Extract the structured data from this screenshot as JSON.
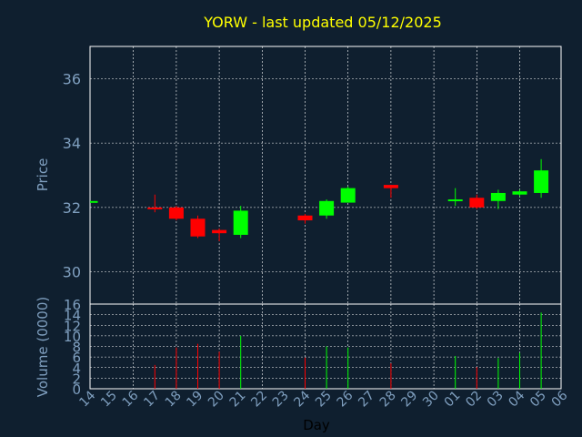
{
  "chart_data": {
    "type": "candlestick",
    "title": "YORW - last updated 05/12/2025",
    "price_ylabel": "Price",
    "volume_ylabel": "Volume (0000)",
    "xlabel": "Day",
    "price_ylim": [
      29,
      37
    ],
    "price_yticks": [
      30,
      32,
      34,
      36
    ],
    "volume_ylim": [
      0,
      16
    ],
    "volume_yticks": [
      0,
      2,
      4,
      6,
      8,
      10,
      12,
      14,
      16
    ],
    "x_tick_labels": [
      "14",
      "15",
      "16",
      "17",
      "18",
      "19",
      "20",
      "21",
      "22",
      "23",
      "24",
      "25",
      "26",
      "27",
      "28",
      "29",
      "30",
      "01",
      "02",
      "03",
      "04",
      "05",
      "06"
    ],
    "grid": true,
    "colors": {
      "up": "#00ff00",
      "down": "#ff0000",
      "grid": "#ffffff",
      "axis": "#7f9fbf",
      "title": "#ffff00",
      "background": "#0f1f2f"
    },
    "candles": [
      {
        "day": "14",
        "open": 32.15,
        "close": 32.2,
        "high": 32.2,
        "low": 32.15,
        "volume": 0
      },
      {
        "day": "17",
        "open": 32.0,
        "close": 31.95,
        "high": 32.4,
        "low": 31.85,
        "volume": 4.5
      },
      {
        "day": "18",
        "open": 32.0,
        "close": 31.65,
        "high": 32.05,
        "low": 31.6,
        "volume": 7.8
      },
      {
        "day": "19",
        "open": 31.65,
        "close": 31.1,
        "high": 31.75,
        "low": 31.05,
        "volume": 8.5
      },
      {
        "day": "20",
        "open": 31.3,
        "close": 31.2,
        "high": 31.35,
        "low": 30.95,
        "volume": 7.0
      },
      {
        "day": "21",
        "open": 31.15,
        "close": 31.9,
        "high": 32.05,
        "low": 31.05,
        "volume": 10.0
      },
      {
        "day": "24",
        "open": 31.75,
        "close": 31.6,
        "high": 31.8,
        "low": 31.5,
        "volume": 5.9
      },
      {
        "day": "25",
        "open": 31.75,
        "close": 32.2,
        "high": 32.25,
        "low": 31.65,
        "volume": 8.0
      },
      {
        "day": "26",
        "open": 32.15,
        "close": 32.6,
        "high": 32.65,
        "low": 32.15,
        "volume": 7.8
      },
      {
        "day": "28",
        "open": 32.7,
        "close": 32.6,
        "high": 32.7,
        "low": 32.3,
        "volume": 4.8
      },
      {
        "day": "01",
        "open": 32.2,
        "close": 32.25,
        "high": 32.6,
        "low": 32.05,
        "volume": 6.2
      },
      {
        "day": "02",
        "open": 32.3,
        "close": 32.0,
        "high": 32.4,
        "low": 31.95,
        "volume": 4.1
      },
      {
        "day": "03",
        "open": 32.2,
        "close": 32.45,
        "high": 32.55,
        "low": 31.95,
        "volume": 5.8
      },
      {
        "day": "04",
        "open": 32.4,
        "close": 32.5,
        "high": 32.55,
        "low": 32.35,
        "volume": 6.8
      },
      {
        "day": "05",
        "open": 32.45,
        "close": 33.15,
        "high": 33.5,
        "low": 32.3,
        "volume": 14.4
      }
    ]
  }
}
